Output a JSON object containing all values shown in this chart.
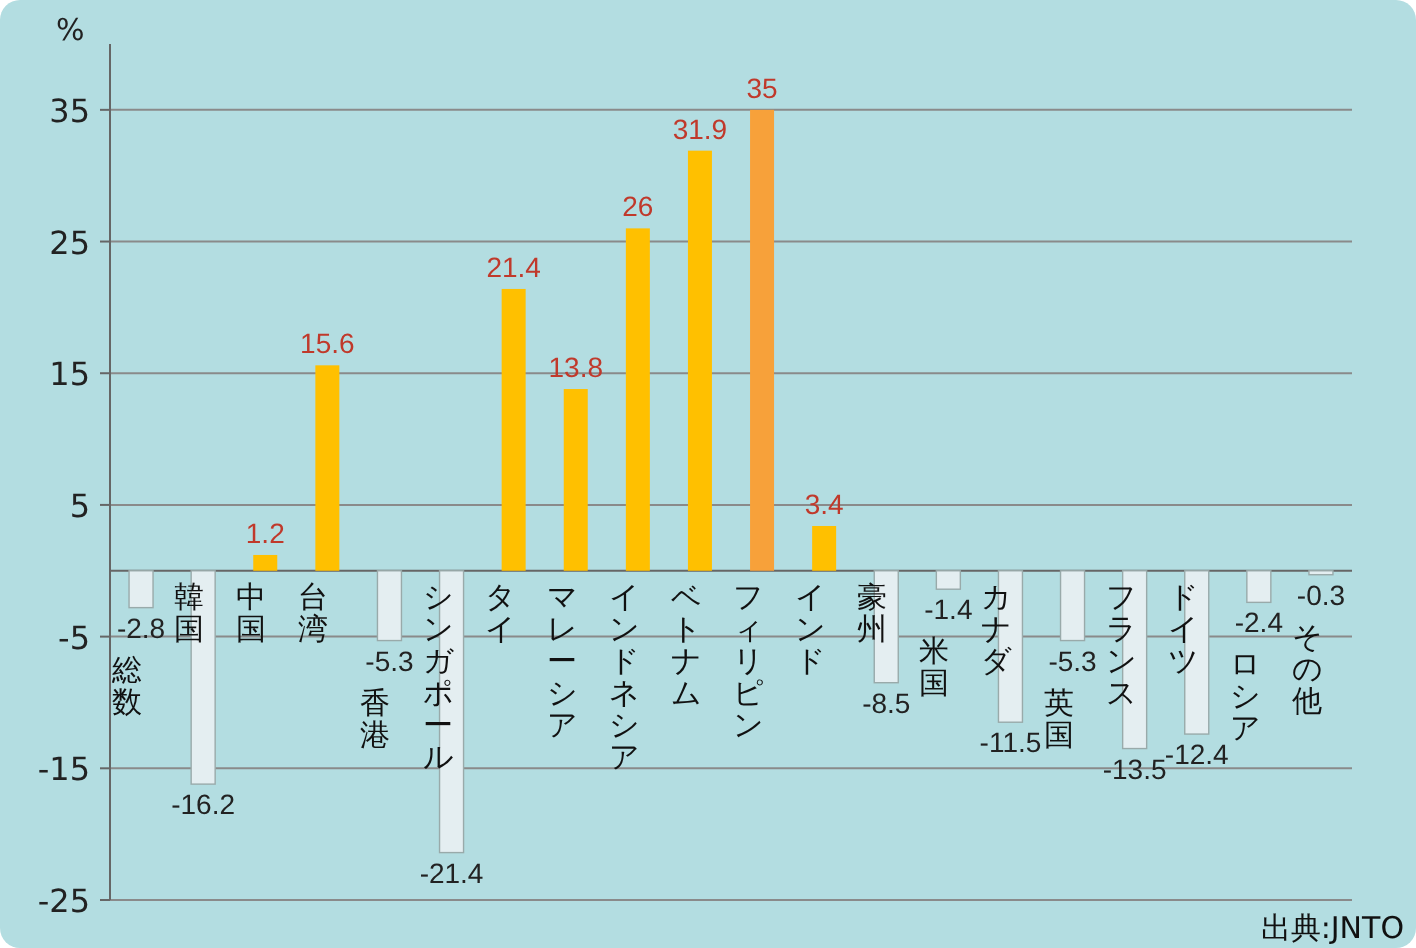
{
  "chart_data": {
    "type": "bar",
    "ylabel": "%",
    "categories": [
      "総数",
      "韓国",
      "中国",
      "台湾",
      "香港",
      "シンガポール",
      "タイ",
      "マレーシア",
      "インドネシア",
      "ベトナム",
      "フィリピン",
      "インド",
      "豪州",
      "米国",
      "カナダ",
      "英国",
      "フランス",
      "ドイツ",
      "ロシア",
      "その他"
    ],
    "values": [
      -2.8,
      -16.2,
      1.2,
      15.6,
      -5.3,
      -21.4,
      21.4,
      13.8,
      26,
      31.9,
      35,
      3.4,
      -8.5,
      -1.4,
      -11.5,
      -5.3,
      -13.5,
      -12.4,
      -2.4,
      -0.3
    ],
    "colors": [
      "#e4eef1",
      "#e4eef1",
      "#ffc000",
      "#ffc000",
      "#e4eef1",
      "#e4eef1",
      "#ffc000",
      "#ffc000",
      "#ffc000",
      "#ffc000",
      "#f7a13a",
      "#ffc000",
      "#e4eef1",
      "#e4eef1",
      "#e4eef1",
      "#e4eef1",
      "#e4eef1",
      "#e4eef1",
      "#e4eef1",
      "#e4eef1"
    ],
    "ylim": [
      -25,
      40
    ],
    "yticks": [
      -25,
      -15,
      -5,
      5,
      15,
      25,
      35
    ],
    "grid": "y",
    "data_labels": true,
    "annotations": [
      "出典:JNTO"
    ]
  }
}
